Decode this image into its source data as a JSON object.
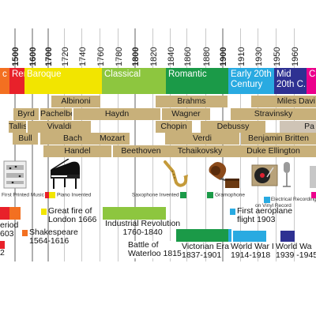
{
  "years": [
    "1500",
    "1600",
    "1700",
    "1720",
    "1740",
    "1760",
    "1780",
    "1800",
    "1820",
    "1840",
    "1860",
    "1880",
    "1900",
    "1910",
    "1930",
    "1950",
    "1960"
  ],
  "eras": {
    "renaissance_partial": "c",
    "renaissance": "Ren.",
    "baroque": "Baroque",
    "classical": "Classical",
    "romantic": "Romantic",
    "early20": "Early 20th\nCentury",
    "mid20": "Mid\n20th C.",
    "contemporary_partial": "C"
  },
  "era_colors": {
    "renaissance": "#e8212a",
    "renaissance_partial": "#f37021",
    "baroque": "#f2e500",
    "classical": "#8dc63f",
    "romantic": "#1b9a48",
    "early20": "#29aae1",
    "mid20": "#2e3192",
    "contemporary": "#ec008c"
  },
  "composers": {
    "byrd": "Byrd",
    "tallis": "Tallis",
    "bull": "Bull",
    "albinoni": "Albinoni",
    "pachelbel": "Pachelbel",
    "vivaldi": "Vivaldi",
    "bach": "Bach",
    "handel": "Handel",
    "haydn": "Haydn",
    "mozart": "Mozart",
    "beethoven": "Beethoven",
    "brahms": "Brahms",
    "wagner": "Wagner",
    "chopin": "Chopin",
    "verdi": "Verdi",
    "tchaikovsky": "Tchaikovsky",
    "debussy": "Debussy",
    "miles_davis": "Miles Davi",
    "stravinsky": "Stravinsky",
    "pa": "Pa",
    "britten": "Benjamin Britten",
    "ellington": "Duke Ellington"
  },
  "inventions": {
    "printed_music": "First Printed Music",
    "piano": "Piano Invented",
    "saxophone": "Saxophone Invented",
    "gramophone": "Gramophone",
    "electrical_recording": "Electrical Recording\non Vinyl Record",
    "icons": [
      "sheet-music-icon",
      "grand-piano-icon",
      "saxophone-icon",
      "gramophone-icon",
      "record-player-icon",
      "microphone-icon"
    ]
  },
  "history": {
    "period_partial": "eriod\n603",
    "partial_2": "2",
    "great_fire": "Great fire of\nLondon 1666",
    "shakespeare": "Shakespeare\n1564-1616",
    "industrial": "Industrial Revolution\n1760-1840",
    "waterloo": "Battle of\nWaterloo 1815",
    "victorian": "Victorian Era\n1837-1901",
    "aeroplane": "First aeroplane\nflight 1903",
    "ww1": "World War I\n1914-1918",
    "ww2": "World Wa\n1939 -1945"
  }
}
